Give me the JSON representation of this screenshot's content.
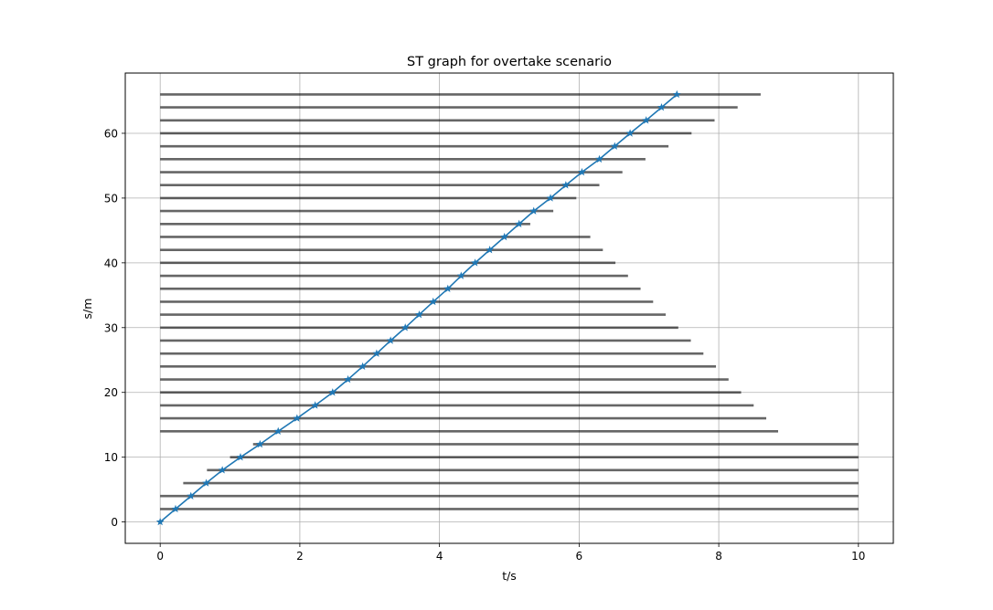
{
  "chart_data": {
    "type": "line",
    "title": "ST graph for overtake scenario",
    "xlabel": "t/s",
    "ylabel": "s/m",
    "xlim": [
      -0.5,
      10.5
    ],
    "ylim": [
      -3.3,
      69.3
    ],
    "xticks": [
      0,
      2,
      4,
      6,
      8,
      10
    ],
    "yticks": [
      0,
      10,
      20,
      30,
      40,
      50,
      60
    ],
    "grid": true,
    "colors": {
      "trajectory": "#1f77b4",
      "obstacle": "#000000",
      "grid": "#b0b0b0"
    },
    "obstacle_intervals": [
      {
        "s": 2,
        "t_start": 0.0,
        "t_end": 10.0
      },
      {
        "s": 4,
        "t_start": 0.0,
        "t_end": 10.0
      },
      {
        "s": 6,
        "t_start": 0.33,
        "t_end": 10.0
      },
      {
        "s": 8,
        "t_start": 0.67,
        "t_end": 10.0
      },
      {
        "s": 10,
        "t_start": 1.0,
        "t_end": 10.0
      },
      {
        "s": 12,
        "t_start": 1.33,
        "t_end": 10.0
      },
      {
        "s": 14,
        "t_start": 0.0,
        "t_end": 8.85
      },
      {
        "s": 16,
        "t_start": 0.0,
        "t_end": 8.68
      },
      {
        "s": 18,
        "t_start": 0.0,
        "t_end": 8.5
      },
      {
        "s": 20,
        "t_start": 0.0,
        "t_end": 8.32
      },
      {
        "s": 22,
        "t_start": 0.0,
        "t_end": 8.14
      },
      {
        "s": 24,
        "t_start": 0.0,
        "t_end": 7.96
      },
      {
        "s": 26,
        "t_start": 0.0,
        "t_end": 7.78
      },
      {
        "s": 28,
        "t_start": 0.0,
        "t_end": 7.6
      },
      {
        "s": 30,
        "t_start": 0.0,
        "t_end": 7.42
      },
      {
        "s": 32,
        "t_start": 0.0,
        "t_end": 7.24
      },
      {
        "s": 34,
        "t_start": 0.0,
        "t_end": 7.06
      },
      {
        "s": 36,
        "t_start": 0.0,
        "t_end": 6.88
      },
      {
        "s": 38,
        "t_start": 0.0,
        "t_end": 6.7
      },
      {
        "s": 40,
        "t_start": 0.0,
        "t_end": 6.52
      },
      {
        "s": 42,
        "t_start": 0.0,
        "t_end": 6.34
      },
      {
        "s": 44,
        "t_start": 0.0,
        "t_end": 6.16
      },
      {
        "s": 46,
        "t_start": 0.0,
        "t_end": 5.3
      },
      {
        "s": 48,
        "t_start": 0.0,
        "t_end": 5.63
      },
      {
        "s": 50,
        "t_start": 0.0,
        "t_end": 5.96
      },
      {
        "s": 52,
        "t_start": 0.0,
        "t_end": 6.29
      },
      {
        "s": 54,
        "t_start": 0.0,
        "t_end": 6.62
      },
      {
        "s": 56,
        "t_start": 0.0,
        "t_end": 6.95
      },
      {
        "s": 58,
        "t_start": 0.0,
        "t_end": 7.28
      },
      {
        "s": 60,
        "t_start": 0.0,
        "t_end": 7.61
      },
      {
        "s": 62,
        "t_start": 0.0,
        "t_end": 7.94
      },
      {
        "s": 64,
        "t_start": 0.0,
        "t_end": 8.27
      },
      {
        "s": 66,
        "t_start": 0.0,
        "t_end": 8.6
      }
    ],
    "trajectory": {
      "t": [
        0.0,
        0.22,
        0.44,
        0.66,
        0.89,
        1.15,
        1.43,
        1.69,
        1.96,
        2.22,
        2.47,
        2.69,
        2.9,
        3.1,
        3.3,
        3.51,
        3.71,
        3.91,
        4.12,
        4.31,
        4.51,
        4.72,
        4.93,
        5.14,
        5.35,
        5.59,
        5.81,
        6.04,
        6.29,
        6.51,
        6.73,
        6.96,
        7.18,
        7.4
      ],
      "s": [
        0,
        2,
        4,
        6,
        8,
        10,
        12,
        14,
        16,
        18,
        20,
        22,
        24,
        26,
        28,
        30,
        32,
        34,
        36,
        38,
        40,
        42,
        44,
        46,
        48,
        50,
        52,
        54,
        56,
        58,
        60,
        62,
        64,
        66
      ],
      "marker": "star"
    }
  }
}
